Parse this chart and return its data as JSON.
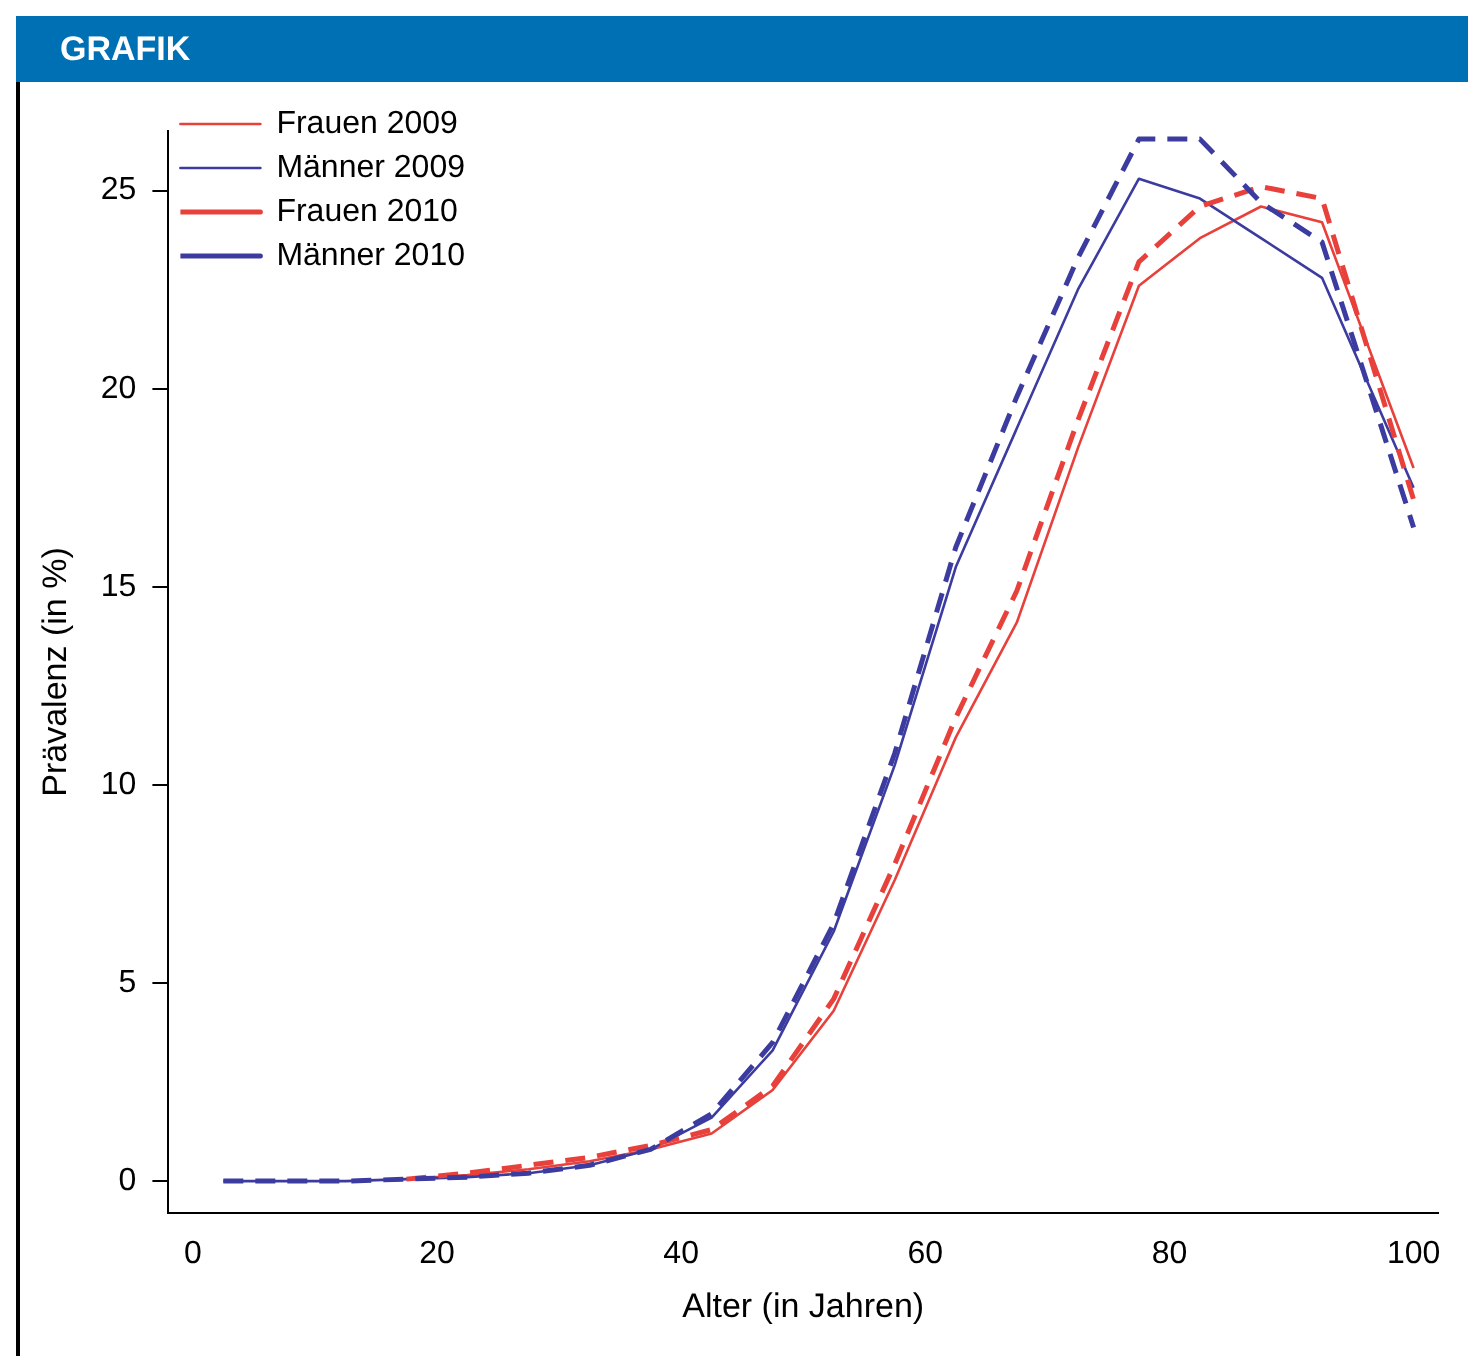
{
  "chart_data": {
    "type": "line",
    "title": "GRAFIK",
    "xlabel": "Alter (in Jahren)",
    "ylabel": "Prävalenz (in %)",
    "x": [
      2.5,
      7.5,
      12.5,
      17.5,
      22.5,
      27.5,
      32.5,
      37.5,
      42.5,
      47.5,
      52.5,
      57.5,
      62.5,
      67.5,
      72.5,
      77.5,
      82.5,
      87.5,
      92.5,
      100
    ],
    "series": [
      {
        "name": "Frauen 2009",
        "color": "#e8413c",
        "line_style": "solid",
        "values": [
          null,
          null,
          null,
          0.05,
          0.15,
          0.3,
          0.5,
          0.8,
          1.2,
          2.3,
          4.3,
          7.6,
          11.2,
          14.1,
          18.5,
          22.6,
          23.8,
          24.6,
          24.2,
          18
        ]
      },
      {
        "name": "Männer 2009",
        "color": "#3c3ca0",
        "line_style": "solid",
        "values": [
          0,
          0,
          0,
          0.05,
          0.1,
          0.2,
          0.4,
          0.8,
          1.6,
          3.3,
          6.3,
          10.5,
          15.5,
          19,
          22.5,
          25.3,
          24.8,
          23.8,
          22.8,
          17.5
        ]
      },
      {
        "name": "Frauen 2010",
        "color": "#e8413c",
        "line_style": "dashed",
        "values": [
          null,
          null,
          null,
          0.05,
          0.2,
          0.4,
          0.6,
          0.9,
          1.3,
          2.4,
          4.6,
          8,
          11.7,
          14.9,
          19.2,
          23.2,
          24.6,
          25.1,
          24.8,
          17.2
        ]
      },
      {
        "name": "Männer 2010",
        "color": "#3c3ca0",
        "line_style": "dashed",
        "values": [
          0,
          0,
          0,
          0.05,
          0.1,
          0.2,
          0.4,
          0.8,
          1.7,
          3.5,
          6.5,
          10.8,
          16,
          19.8,
          23.3,
          26.3,
          26.3,
          24.7,
          23.7,
          16.5
        ]
      }
    ],
    "xlim": [
      -2,
      102
    ],
    "xticks": [
      0,
      20,
      40,
      60,
      80,
      100
    ],
    "ylim": [
      -0.8,
      26.5
    ],
    "yticks": [
      0,
      5,
      10,
      15,
      20,
      25
    ],
    "grid": false,
    "legend": "top left",
    "marker": "none"
  }
}
